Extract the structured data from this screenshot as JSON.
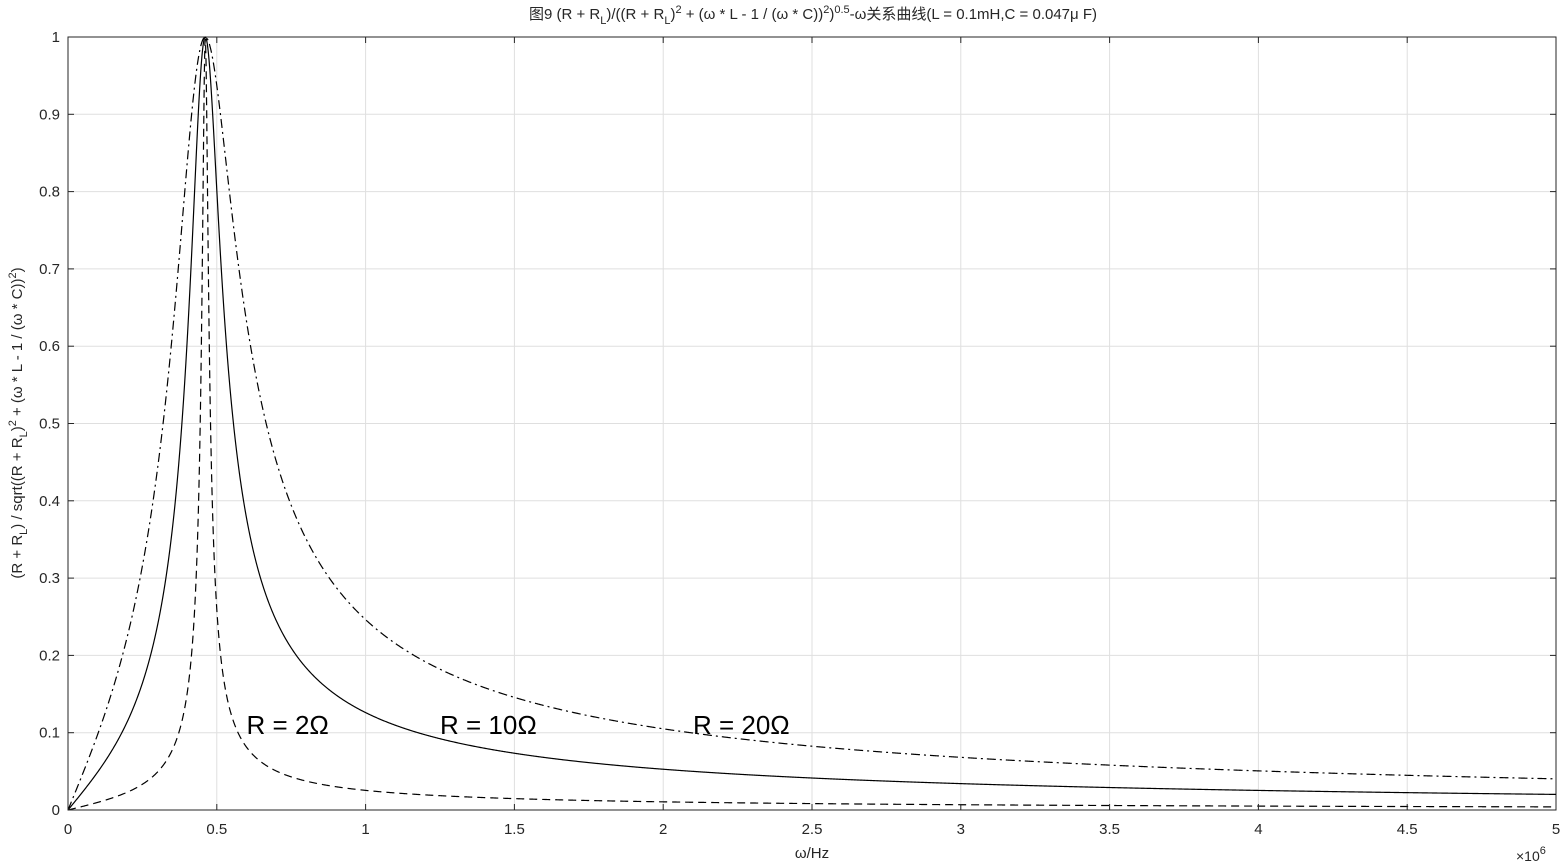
{
  "chart_data": {
    "type": "line",
    "title_parts": [
      "图9 (R + R",
      "L",
      ")/((R + R",
      "L",
      ")",
      "2",
      " + (ω * L - 1 / (ω * C))",
      "2",
      ")",
      "0.5",
      "-ω关系曲线(L = 0.1mH,C = 0.047μ F)"
    ],
    "xlabel": "ω/Hz",
    "ylabel_parts": [
      "(R + R",
      "L",
      ") / sqrt((R + R",
      "L",
      ")",
      "2",
      " + (ω * L - 1 / (ω * C))",
      "2",
      ")"
    ],
    "x_exponent_base": "×10",
    "x_exponent_power": "6",
    "x_scale_factor": 1000000,
    "xlim": [
      0,
      5
    ],
    "ylim": [
      0,
      1
    ],
    "x_ticks": [
      "0",
      "0.5",
      "1",
      "1.5",
      "2",
      "2.5",
      "3",
      "3.5",
      "4",
      "4.5",
      "5"
    ],
    "y_ticks": [
      "0",
      "0.1",
      "0.2",
      "0.3",
      "0.4",
      "0.5",
      "0.6",
      "0.7",
      "0.8",
      "0.9",
      "1"
    ],
    "grid": true,
    "line_color": "#000000",
    "grid_color": "#dfdfdf",
    "params": {
      "L": 0.0001,
      "C": 4.7e-08
    },
    "series": [
      {
        "dash": "dashed",
        "resistance": 2,
        "x": [
          0,
          0.1,
          0.2,
          0.3,
          0.35,
          0.4,
          0.43,
          0.45,
          0.461,
          0.47,
          0.48,
          0.5,
          0.55,
          0.6,
          0.7,
          0.8,
          1,
          1.5,
          2,
          3,
          4,
          5
        ],
        "y": [
          0,
          0.009,
          0.02,
          0.043,
          0.067,
          0.135,
          0.27,
          0.6,
          1,
          0.7,
          0.45,
          0.23,
          0.11,
          0.072,
          0.043,
          0.031,
          0.021,
          0.011,
          0.0077,
          0.0049,
          0.0036,
          0.0029
        ]
      },
      {
        "dash": "solid",
        "resistance": 10,
        "x": [
          0,
          0.1,
          0.2,
          0.3,
          0.35,
          0.4,
          0.43,
          0.45,
          0.461,
          0.47,
          0.48,
          0.5,
          0.55,
          0.6,
          0.7,
          0.8,
          1,
          1.5,
          2,
          3,
          4,
          5
        ],
        "y": [
          0,
          0.047,
          0.104,
          0.209,
          0.325,
          0.593,
          0.856,
          0.984,
          1,
          0.99,
          0.95,
          0.82,
          0.53,
          0.37,
          0.22,
          0.155,
          0.103,
          0.055,
          0.038,
          0.025,
          0.018,
          0.0145
        ]
      },
      {
        "dash": "dashdot",
        "resistance": 20,
        "x": [
          0,
          0.1,
          0.2,
          0.3,
          0.35,
          0.4,
          0.43,
          0.45,
          0.461,
          0.47,
          0.48,
          0.5,
          0.55,
          0.6,
          0.7,
          0.8,
          1,
          1.5,
          2,
          3,
          4,
          5
        ],
        "y": [
          0,
          0.093,
          0.205,
          0.392,
          0.562,
          0.826,
          0.96,
          0.996,
          1,
          0.997,
          0.985,
          0.94,
          0.78,
          0.6,
          0.4,
          0.3,
          0.2,
          0.11,
          0.077,
          0.05,
          0.036,
          0.03
        ]
      }
    ],
    "annotations": [
      {
        "text": "R = 2Ω",
        "x": 0.6,
        "y": 0.11
      },
      {
        "text": "R = 10Ω",
        "x": 1.25,
        "y": 0.11
      },
      {
        "text": "R = 20Ω",
        "x": 2.1,
        "y": 0.11
      }
    ]
  }
}
